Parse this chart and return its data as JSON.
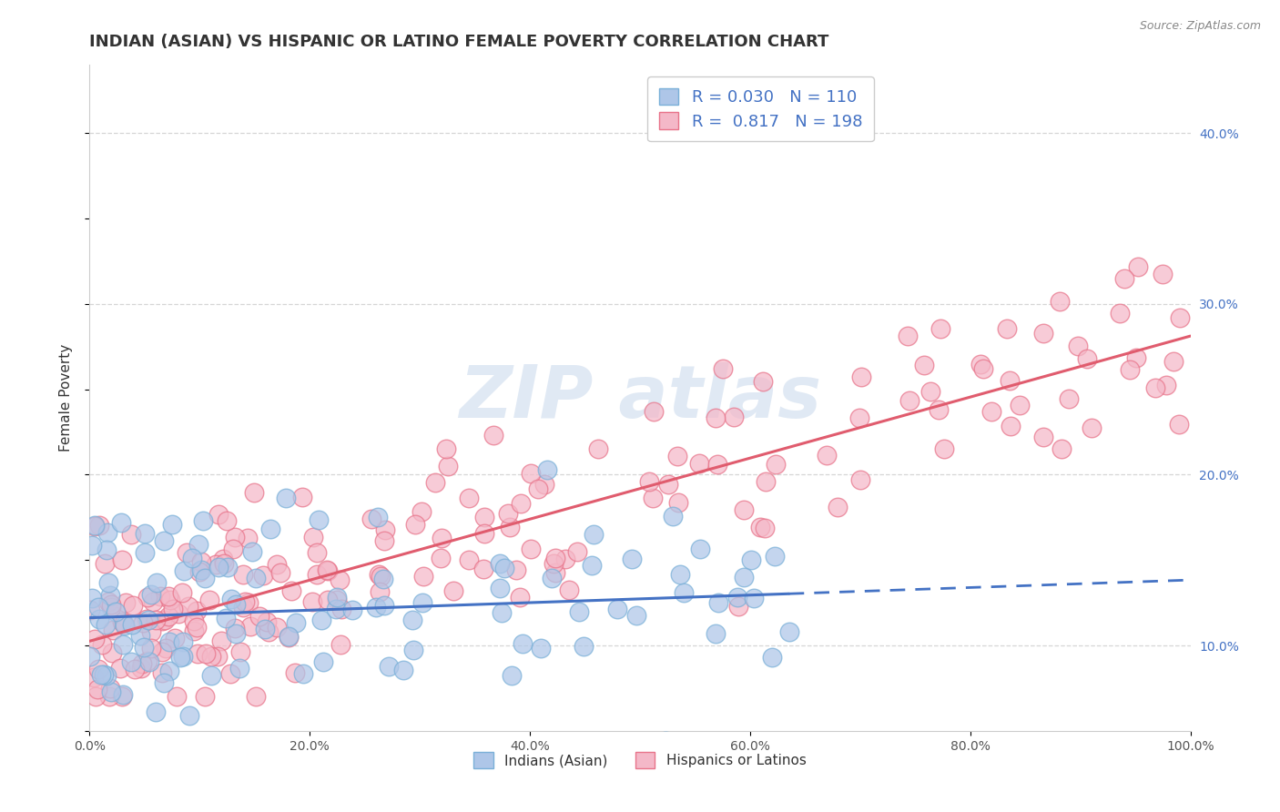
{
  "title": "INDIAN (ASIAN) VS HISPANIC OR LATINO FEMALE POVERTY CORRELATION CHART",
  "source": "Source: ZipAtlas.com",
  "ylabel": "Female Poverty",
  "legend_entries": [
    {
      "label": "Indians (Asian)",
      "color": "#aec6e8",
      "border": "#7ab0d8"
    },
    {
      "label": "Hispanics or Latinos",
      "color": "#f4b8c8",
      "border": "#e8748a"
    }
  ],
  "R_blue": 0.03,
  "N_blue": 110,
  "R_pink": 0.817,
  "N_pink": 198,
  "blue_scatter_color": "#aec6e8",
  "blue_scatter_edge": "#7ab0d8",
  "pink_scatter_color": "#f4b8c8",
  "pink_scatter_edge": "#e8748a",
  "blue_line_color": "#4472c4",
  "pink_line_color": "#e05c6e",
  "watermark": "ZIPAtlas",
  "xlim": [
    0.0,
    100.0
  ],
  "ylim": [
    5.0,
    44.0
  ],
  "y_ticks": [
    10.0,
    20.0,
    30.0,
    40.0
  ],
  "x_ticks": [
    0.0,
    20.0,
    40.0,
    60.0,
    80.0,
    100.0
  ],
  "grid_color": "#cccccc",
  "background_color": "#ffffff",
  "title_fontsize": 13,
  "axis_label_fontsize": 11,
  "tick_label_fontsize": 10,
  "right_tick_color": "#4472c4",
  "legend_fontsize": 13
}
